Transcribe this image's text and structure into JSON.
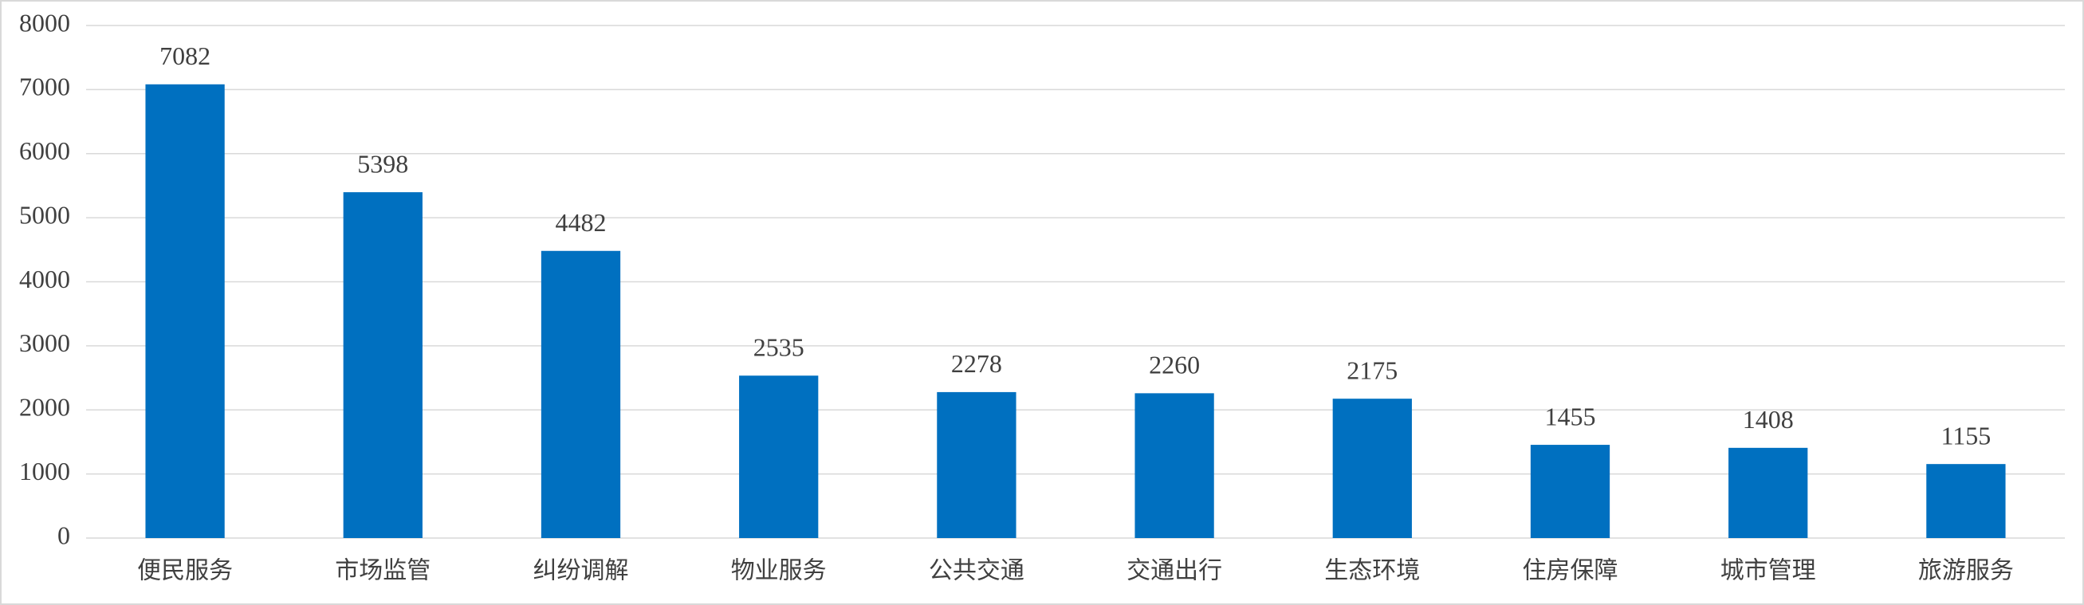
{
  "chart_data": {
    "type": "bar",
    "categories": [
      "便民服务",
      "市场监管",
      "纠纷调解",
      "物业服务",
      "公共交通",
      "交通出行",
      "生态环境",
      "住房保障",
      "城市管理",
      "旅游服务"
    ],
    "values": [
      7082,
      5398,
      4482,
      2535,
      2278,
      2260,
      2175,
      1455,
      1408,
      1155
    ],
    "color": "#0070c0",
    "ylim": [
      0,
      8000
    ],
    "yticks": [
      0,
      1000,
      2000,
      3000,
      4000,
      5000,
      6000,
      7000,
      8000
    ],
    "grid": true
  }
}
